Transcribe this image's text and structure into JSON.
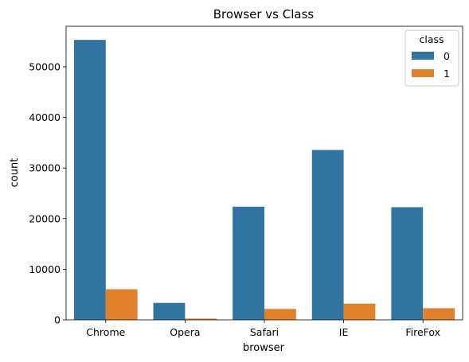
{
  "chart_data": {
    "type": "bar",
    "title": "Browser vs Class",
    "xlabel": "browser",
    "ylabel": "count",
    "categories": [
      "Chrome",
      "Opera",
      "Safari",
      "IE",
      "FireFox"
    ],
    "series": [
      {
        "name": "0",
        "color": "#3274a1",
        "values": [
          55300,
          3350,
          22350,
          33550,
          22250
        ]
      },
      {
        "name": "1",
        "color": "#e1812c",
        "values": [
          6050,
          250,
          2150,
          3200,
          2300
        ]
      }
    ],
    "ylim": [
      0,
      58000
    ],
    "yticks": [
      0,
      10000,
      20000,
      30000,
      40000,
      50000
    ],
    "ytick_labels": [
      "0",
      "10000",
      "20000",
      "30000",
      "40000",
      "50000"
    ],
    "grid": false,
    "legend": {
      "title": "class",
      "placement": "top-right"
    }
  }
}
